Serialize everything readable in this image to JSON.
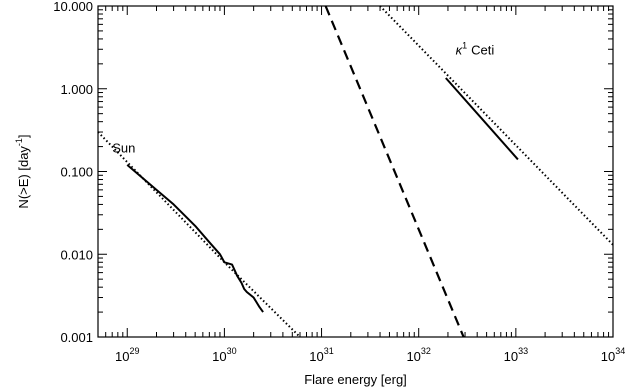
{
  "chart_data": {
    "type": "line",
    "title": "",
    "xlabel": "Flare energy [erg]",
    "ylabel": "N(>E) [day",
    "ylabel_superscript": "-1",
    "ylabel_suffix": "]",
    "x_scale": "log",
    "y_scale": "log",
    "xlim": [
      5e+28,
      1e+34
    ],
    "ylim": [
      0.001,
      10
    ],
    "grid": false,
    "legend": "none",
    "x_ticks": [
      {
        "value": 1e+29,
        "base": "10",
        "exp": "29"
      },
      {
        "value": 1e+30,
        "base": "10",
        "exp": "30"
      },
      {
        "value": 1e+31,
        "base": "10",
        "exp": "31"
      },
      {
        "value": 1e+32,
        "base": "10",
        "exp": "32"
      },
      {
        "value": 1e+33,
        "base": "10",
        "exp": "33"
      },
      {
        "value": 1e+34,
        "base": "10",
        "exp": "34"
      }
    ],
    "y_ticks": [
      {
        "value": 10,
        "label": "10.000"
      },
      {
        "value": 1,
        "label": "1.000"
      },
      {
        "value": 0.1,
        "label": "0.100"
      },
      {
        "value": 0.01,
        "label": "0.010"
      },
      {
        "value": 0.001,
        "label": "0.001"
      }
    ],
    "annotations": [
      {
        "text": "Sun",
        "x": 7e+28,
        "y": 0.17
      },
      {
        "text_sup": "1",
        "text_greek": "κ",
        "text": "Ceti",
        "x": 2.4e+32,
        "y": 2.6
      }
    ],
    "series": [
      {
        "style": "dotted",
        "x": [
          5e+28,
          1e+29,
          1e+30,
          6e+30
        ],
        "y": [
          0.3,
          0.13,
          0.008,
          0.001
        ]
      },
      {
        "style": "solid",
        "x": [
          1e+29,
          2e+29,
          3e+29,
          5e+29,
          7e+29,
          9e+29,
          1e+30,
          1.2e+30,
          1.35e+30,
          1.5e+30,
          1.6e+30,
          1.7e+30,
          2e+30,
          2.3e+30,
          2.5e+30
        ],
        "y": [
          0.12,
          0.06,
          0.04,
          0.022,
          0.014,
          0.01,
          0.008,
          0.0075,
          0.0055,
          0.0045,
          0.0038,
          0.0035,
          0.003,
          0.0023,
          0.002
        ]
      },
      {
        "style": "dashed",
        "x": [
          1.1e+31,
          2.9e+32
        ],
        "y": [
          10,
          0.001
        ]
      },
      {
        "style": "dotted",
        "x": [
          4e+31,
          1e+34
        ],
        "y": [
          10,
          0.013
        ]
      },
      {
        "style": "solid",
        "x": [
          1.9e+32,
          1.05e+33
        ],
        "y": [
          1.35,
          0.14
        ]
      }
    ]
  }
}
